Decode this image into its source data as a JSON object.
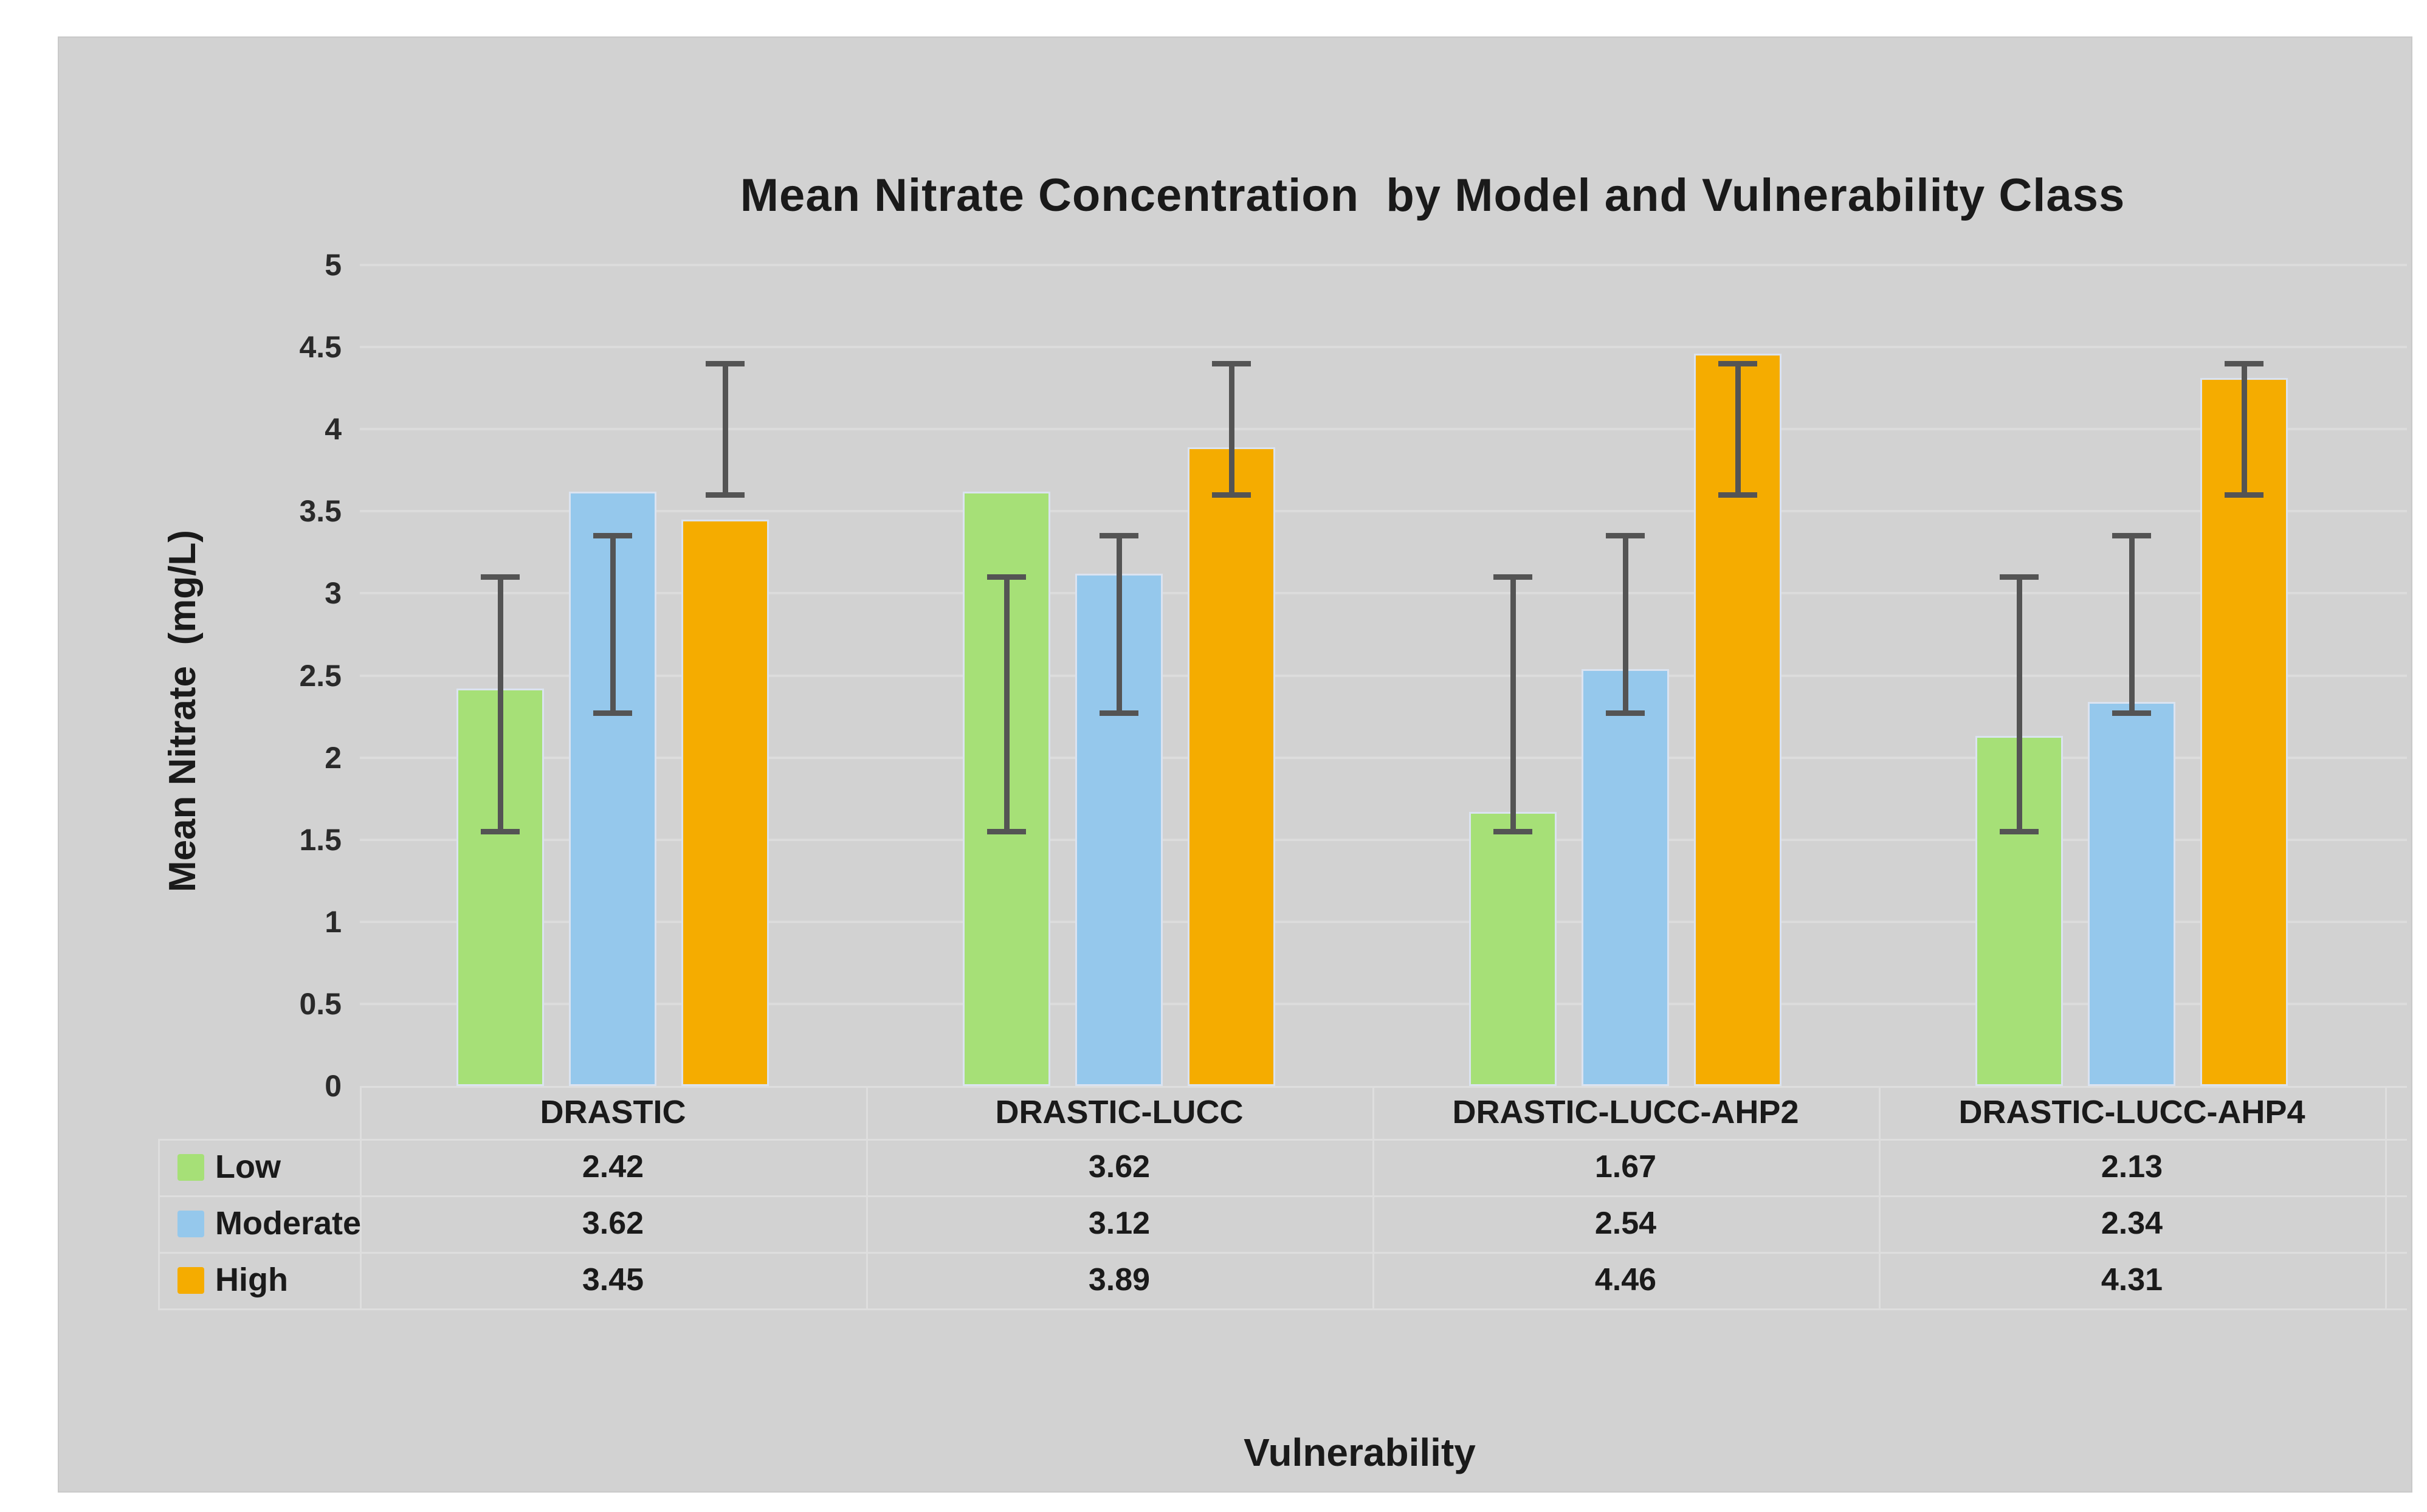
{
  "page": {
    "background": "#ffffff",
    "panel_background": "#d2d2d2"
  },
  "title": "Mean Nitrate Concentration  by Model and Vulnerability Class",
  "y_axis": {
    "label": "Mean Nitrate  (mg/L)",
    "ticks": [
      "5",
      "4.5",
      "4",
      "3.5",
      "3",
      "2.5",
      "2",
      "1.5",
      "1",
      "0.5",
      "0"
    ]
  },
  "x_axis": {
    "label": "Vulnerability"
  },
  "chart_data": {
    "type": "bar",
    "title": "Mean Nitrate Concentration by Model and Vulnerability Class",
    "xlabel": "Vulnerability",
    "ylabel": "Mean Nitrate (mg/L)",
    "ylim": [
      0,
      5
    ],
    "ytick_step": 0.5,
    "grid": true,
    "legend_position": "table-left",
    "categories": [
      "DRASTIC",
      "DRASTIC-LUCC",
      "DRASTIC-LUCC-AHP2",
      "DRASTIC-LUCC-AHP4"
    ],
    "series": [
      {
        "name": "Low",
        "color": "#a6e077",
        "values": [
          2.42,
          3.62,
          1.67,
          2.13
        ],
        "error_bar": {
          "low": 1.55,
          "high": 3.1
        }
      },
      {
        "name": "Moderate",
        "color": "#95c8ec",
        "values": [
          3.62,
          3.12,
          2.54,
          2.34
        ],
        "error_bar": {
          "low": 2.27,
          "high": 3.35
        }
      },
      {
        "name": "High",
        "color": "#f5ac00",
        "values": [
          3.45,
          3.89,
          4.46,
          4.31
        ],
        "error_bar": {
          "low": 3.6,
          "high": 4.4
        }
      }
    ],
    "error_bar_color": "#545454",
    "gridline_color": "#dcdcdc",
    "table_line_color": "#dedede"
  }
}
